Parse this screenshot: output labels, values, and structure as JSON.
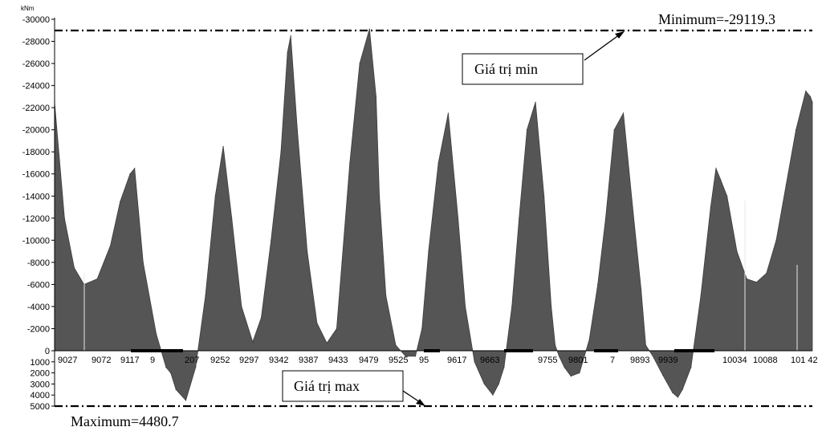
{
  "chart_data": {
    "type": "area",
    "unit": "kNm",
    "y_ticks_top": [
      "-30000",
      "-28000",
      "-26000",
      "-24000",
      "-22000",
      "-20000",
      "-18000",
      "-16000",
      "-14000",
      "-12000",
      "-10000",
      "-8000",
      "-6000",
      "-4000",
      "-2000",
      "0"
    ],
    "y_ticks_bottom": [
      "1000",
      "2000",
      "3000",
      "4000",
      "5000"
    ],
    "x_ticks": [
      "9027",
      "9072",
      "9117",
      "9",
      "207",
      "9252",
      "9297",
      "9342",
      "9387",
      "9433",
      "9479",
      "9525",
      "95",
      "9617",
      "9663",
      "9755",
      "9801",
      "7",
      "9893",
      "9939",
      "10034",
      "10088",
      "101 42"
    ],
    "minimum_label": "Minimum=-29119.3",
    "maximum_label": "Maximum=4480.7",
    "minimum_value": -29119.3,
    "maximum_value": 4480.7,
    "callout_min": "Giá trị min",
    "callout_max": "Giá trị max",
    "series": [
      {
        "x": [
          8995,
          9010,
          9025,
          9040,
          9060,
          9080,
          9095,
          9110,
          9117,
          9130,
          9150,
          9165,
          9172,
          9180,
          9195,
          9210,
          9225,
          9240,
          9252,
          9265,
          9280,
          9297,
          9310,
          9325,
          9340,
          9350,
          9355,
          9365,
          9380,
          9395,
          9410,
          9425,
          9433,
          9445,
          9460,
          9475,
          9485,
          9490,
          9500,
          9515,
          9530,
          9545,
          9555,
          9565,
          9580,
          9595,
          9610,
          9621,
          9635,
          9650,
          9663,
          9672,
          9680,
          9692,
          9703,
          9715,
          9728,
          9741,
          9752,
          9758,
          9764,
          9772,
          9782,
          9795,
          9810,
          9823,
          9835,
          9848,
          9862,
          9876,
          9889,
          9896,
          9907,
          9922,
          9937,
          9945,
          9952,
          9965,
          9980,
          9995,
          10003,
          10010,
          10020,
          10035,
          10050,
          10065,
          10080,
          10095,
          10110,
          10125,
          10140,
          10147,
          10150
        ],
        "y": [
          -22500,
          -12000,
          -7500,
          -6000,
          -6500,
          -9500,
          -13500,
          -16000,
          -16500,
          -8000,
          -1500,
          1500,
          2000,
          3500,
          4480.7,
          1500,
          -5000,
          -14000,
          -18500,
          -12000,
          -4000,
          -800,
          -3000,
          -10000,
          -18000,
          -27000,
          -28500,
          -20000,
          -9000,
          -2500,
          -700,
          -2000,
          -8000,
          -17000,
          -26000,
          -29119.3,
          -23000,
          -14000,
          -5000,
          -500,
          500,
          500,
          -2000,
          -9000,
          -17000,
          -21500,
          -12000,
          -4000,
          1000,
          3000,
          4000,
          3000,
          1500,
          -4000,
          -12000,
          -20000,
          -22500,
          -14000,
          -4000,
          -500,
          500,
          1500,
          2300,
          2000,
          -1000,
          -6000,
          -12000,
          -20000,
          -21500,
          -13000,
          -5500,
          -500,
          500,
          2200,
          3800,
          4200,
          3500,
          1500,
          -5000,
          -13000,
          -16500,
          -15500,
          -14000,
          -9000,
          -6500,
          -6200,
          -7000,
          -10000,
          -15000,
          -20000,
          -23500,
          -23000,
          -22500
        ]
      }
    ]
  }
}
